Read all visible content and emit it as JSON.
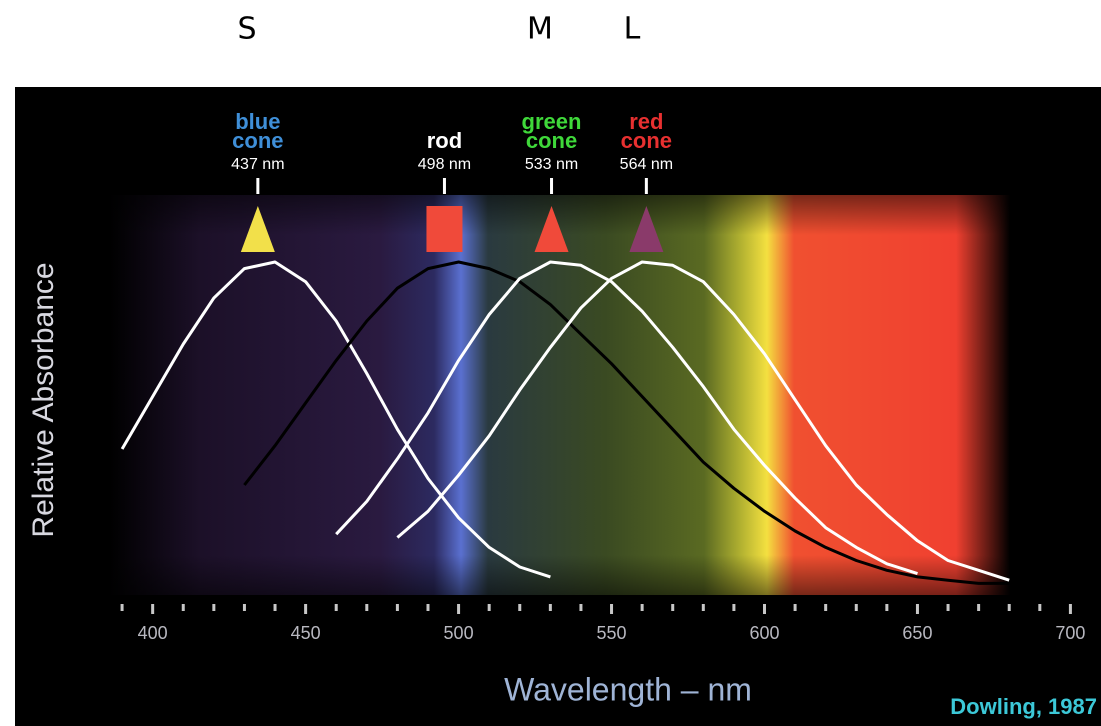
{
  "labels": [
    "S",
    "M",
    "L"
  ],
  "chart_data": {
    "type": "line",
    "x_label": "Wavelength – nm",
    "y_label": "Relative Absorbance",
    "credit": "Dowling, 1987",
    "xlim": [
      355,
      710
    ],
    "ylim": [
      0,
      1
    ],
    "xticks": [
      400,
      450,
      500,
      550,
      600,
      650,
      700
    ],
    "minor_xticks": [
      390,
      410,
      420,
      430,
      440,
      460,
      470,
      480,
      490,
      510,
      520,
      530,
      540,
      560,
      570,
      580,
      590,
      610,
      620,
      630,
      640,
      660,
      670,
      680,
      690
    ],
    "x": [
      390,
      400,
      410,
      420,
      430,
      440,
      450,
      460,
      470,
      480,
      490,
      500,
      510,
      520,
      530,
      540,
      550,
      560,
      570,
      580,
      590,
      600,
      610,
      620,
      630,
      640,
      650,
      660,
      670,
      680,
      690
    ],
    "series": [
      {
        "name": "blue cone",
        "label_color": "#3f8fd8",
        "color": "#ffffff",
        "peak": 437,
        "peak_label": "437 nm",
        "marker": "triangle",
        "marker_color": "#f2e04a",
        "values": [
          0.43,
          0.59,
          0.75,
          0.89,
          0.98,
          1.0,
          0.94,
          0.82,
          0.66,
          0.49,
          0.34,
          0.22,
          0.13,
          0.07,
          0.04,
          null,
          null,
          null,
          null,
          null,
          null,
          null,
          null,
          null,
          null,
          null,
          null,
          null,
          null,
          null,
          null
        ]
      },
      {
        "name": "rod",
        "label_color": "#ffffff",
        "color": "#000000",
        "peak": 498,
        "peak_label": "498 nm",
        "marker": "square",
        "marker_color": "#f04a3a",
        "values": [
          null,
          null,
          null,
          null,
          0.32,
          0.44,
          0.57,
          0.7,
          0.82,
          0.92,
          0.98,
          1.0,
          0.98,
          0.94,
          0.87,
          0.78,
          0.69,
          0.59,
          0.49,
          0.39,
          0.31,
          0.24,
          0.18,
          0.13,
          0.09,
          0.06,
          0.04,
          0.03,
          0.02,
          0.02,
          null
        ]
      },
      {
        "name": "green cone",
        "label_color": "#3fd83a",
        "color": "#ffffff",
        "peak": 533,
        "peak_label": "533 nm",
        "marker": "triangle",
        "marker_color": "#f04a3a",
        "values": [
          null,
          null,
          null,
          null,
          null,
          null,
          null,
          0.17,
          0.27,
          0.4,
          0.54,
          0.7,
          0.84,
          0.95,
          1.0,
          0.99,
          0.94,
          0.85,
          0.74,
          0.62,
          0.49,
          0.38,
          0.28,
          0.19,
          0.13,
          0.08,
          0.05,
          null,
          null,
          null,
          null
        ]
      },
      {
        "name": "red cone",
        "label_color": "#e83030",
        "color": "#ffffff",
        "peak": 564,
        "peak_label": "564 nm",
        "marker": "triangle",
        "marker_color": "#8a3a6a",
        "values": [
          null,
          null,
          null,
          null,
          null,
          null,
          null,
          null,
          null,
          0.16,
          0.24,
          0.35,
          0.47,
          0.61,
          0.74,
          0.86,
          0.95,
          1.0,
          0.99,
          0.94,
          0.84,
          0.72,
          0.58,
          0.44,
          0.32,
          0.23,
          0.15,
          0.09,
          0.06,
          0.03,
          null
        ]
      }
    ]
  }
}
